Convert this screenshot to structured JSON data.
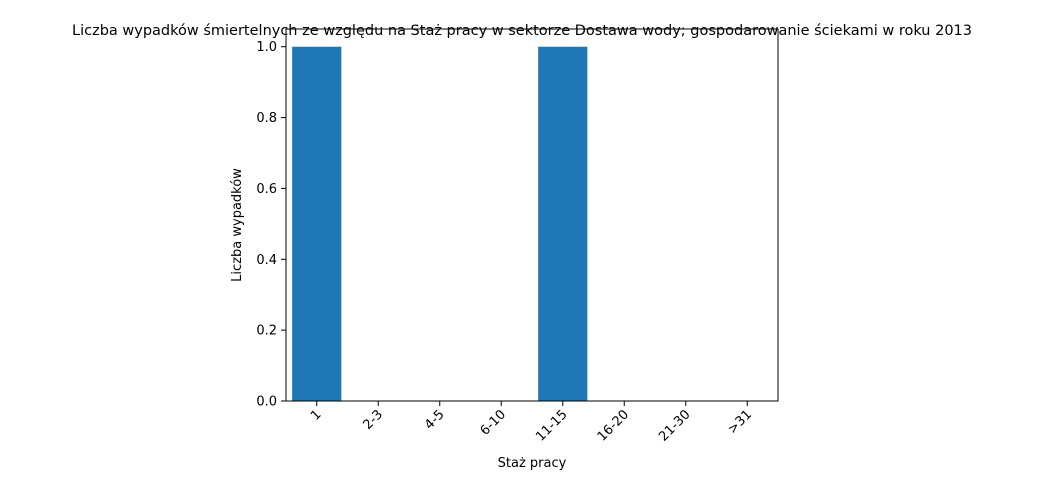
{
  "chart_data": {
    "type": "bar",
    "title": "Liczba wypadków śmiertelnych ze względu na Staż pracy w sektorze Dostawa wody; gospodarowanie ściekami w roku 2013",
    "xlabel": "Staż pracy",
    "ylabel": "Liczba wypadków",
    "categories": [
      "1",
      "2-3",
      "4-5",
      "6-10",
      "11-15",
      "16-20",
      "21-30",
      ">31"
    ],
    "values": [
      1,
      0,
      0,
      0,
      1,
      0,
      0,
      0
    ],
    "ylim": [
      0,
      1.05
    ],
    "yticks": [
      0.0,
      0.2,
      0.4,
      0.6,
      0.8,
      1.0
    ],
    "ytick_labels": [
      "0.0",
      "0.2",
      "0.4",
      "0.6",
      "0.8",
      "1.0"
    ],
    "bar_color": "#1f77b4",
    "grid": false,
    "legend": "none"
  }
}
